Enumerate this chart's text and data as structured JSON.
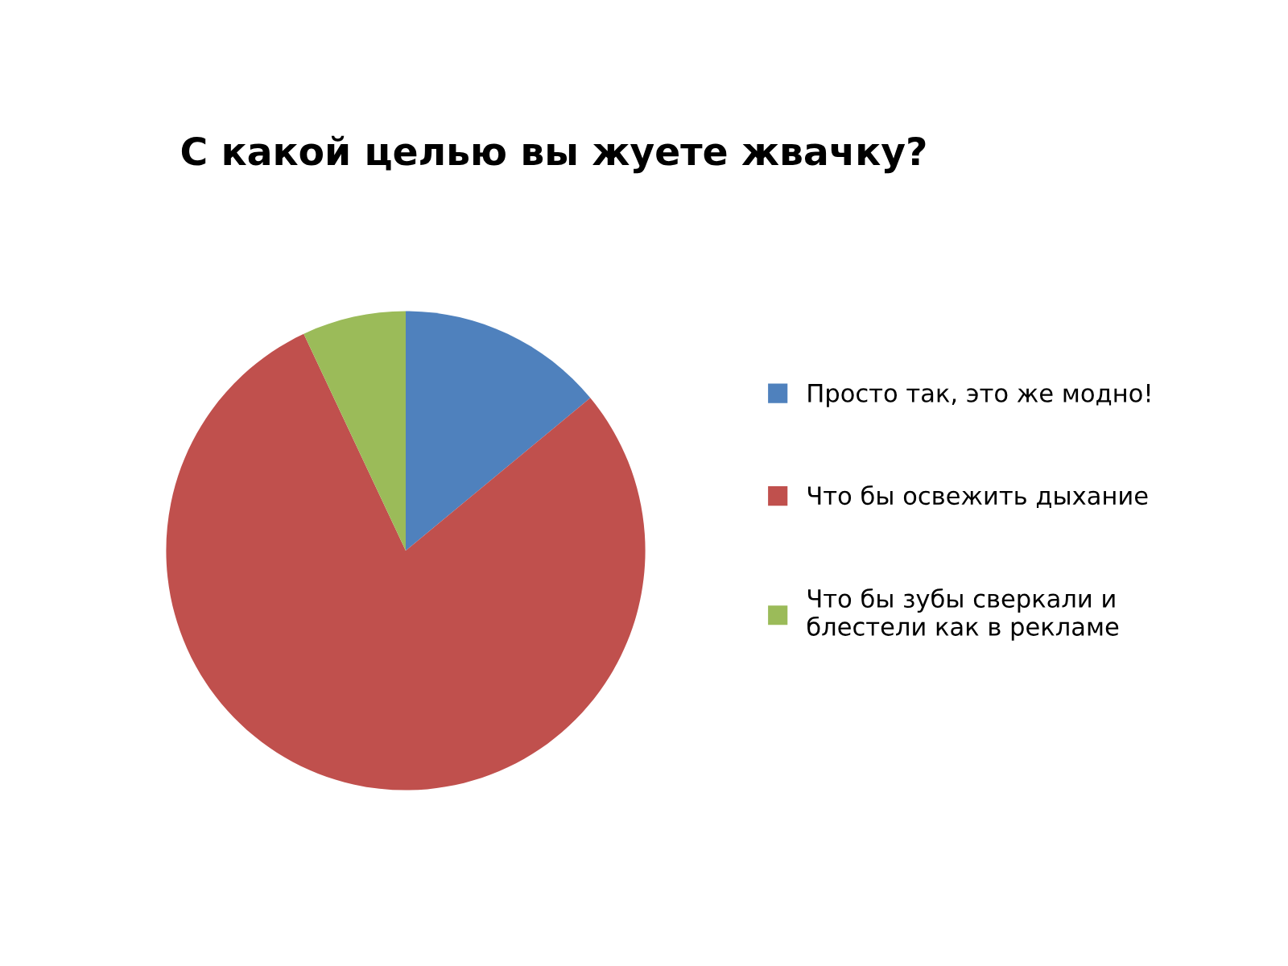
{
  "chart_data": {
    "type": "pie",
    "title": "С какой целью вы жуете жвачку?",
    "categories": [
      "Просто так, это же модно!",
      "Что бы освежить дыхание",
      "Что бы зубы сверкали и блестели как в рекламе"
    ],
    "values": [
      14,
      79,
      7
    ],
    "colors": [
      "#4f81bd",
      "#c0504d",
      "#9bbb59"
    ],
    "legend": "right"
  }
}
